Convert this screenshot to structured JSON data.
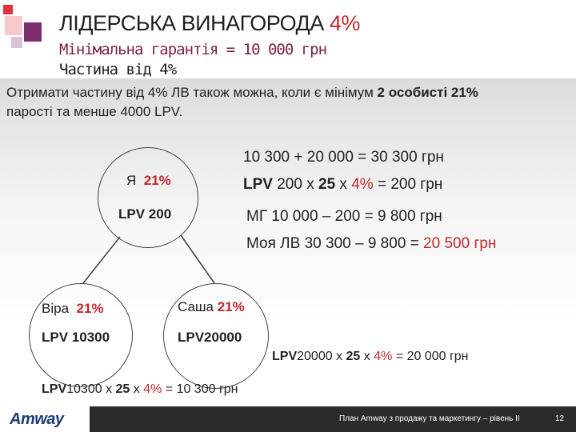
{
  "title": {
    "main": "ЛІДЕРСЬКА ВИНАГОРОДА",
    "pct": "4%"
  },
  "subtitle": "Мінімальна гарантія = 10 000 грн",
  "subtitle2": "Частина від 4%",
  "intro": {
    "line1_a": "Отримати частину від 4% ЛВ також можна, коли є мінімум ",
    "line1_b": "2 особисті 21%",
    "line2": "паростi та менше 4000 LPV."
  },
  "nodes": {
    "me": {
      "name": "Я",
      "pct": "21%",
      "lpv": "LPV 200"
    },
    "vira": {
      "name": "Віра",
      "pct": "21%",
      "lpv": "LPV 10300"
    },
    "sasha": {
      "name": "Саша",
      "pct": "21%",
      "lpv": "LPV20000"
    }
  },
  "calc": {
    "line1": "10 300 + 20 000 = 30 300 грн",
    "line2": {
      "lpv": "LPV",
      "a": " 200 х ",
      "k": "25",
      "b": " х ",
      "p": "4%",
      "c": " = 200 грн"
    },
    "line3": "МГ 10 000 – 200  = 9 800 грн",
    "line4": {
      "a": "Моя ЛВ 30 300 – 9 800 = ",
      "b": "20 500 грн"
    }
  },
  "formula_sasha": {
    "lpv": "LPV",
    "a": "20000 х ",
    "k": "25",
    "b": " х ",
    "p": "4%",
    "c": " = 20 000 грн"
  },
  "formula_vira": {
    "lpv": "LPV",
    "a": "10300 х ",
    "k": "25",
    "b": " х ",
    "p": "4%",
    "c": " = 10 300 грн"
  },
  "footer": {
    "logo": "Amway",
    "text": "План Amway з продажу та маркетингу – рівень II",
    "page": "12"
  },
  "colors": {
    "accent_red": "#c0272d",
    "title_purple": "#7a1e46",
    "footer_bg": "#2b2b2b",
    "logo_blue": "#1d3d73"
  }
}
